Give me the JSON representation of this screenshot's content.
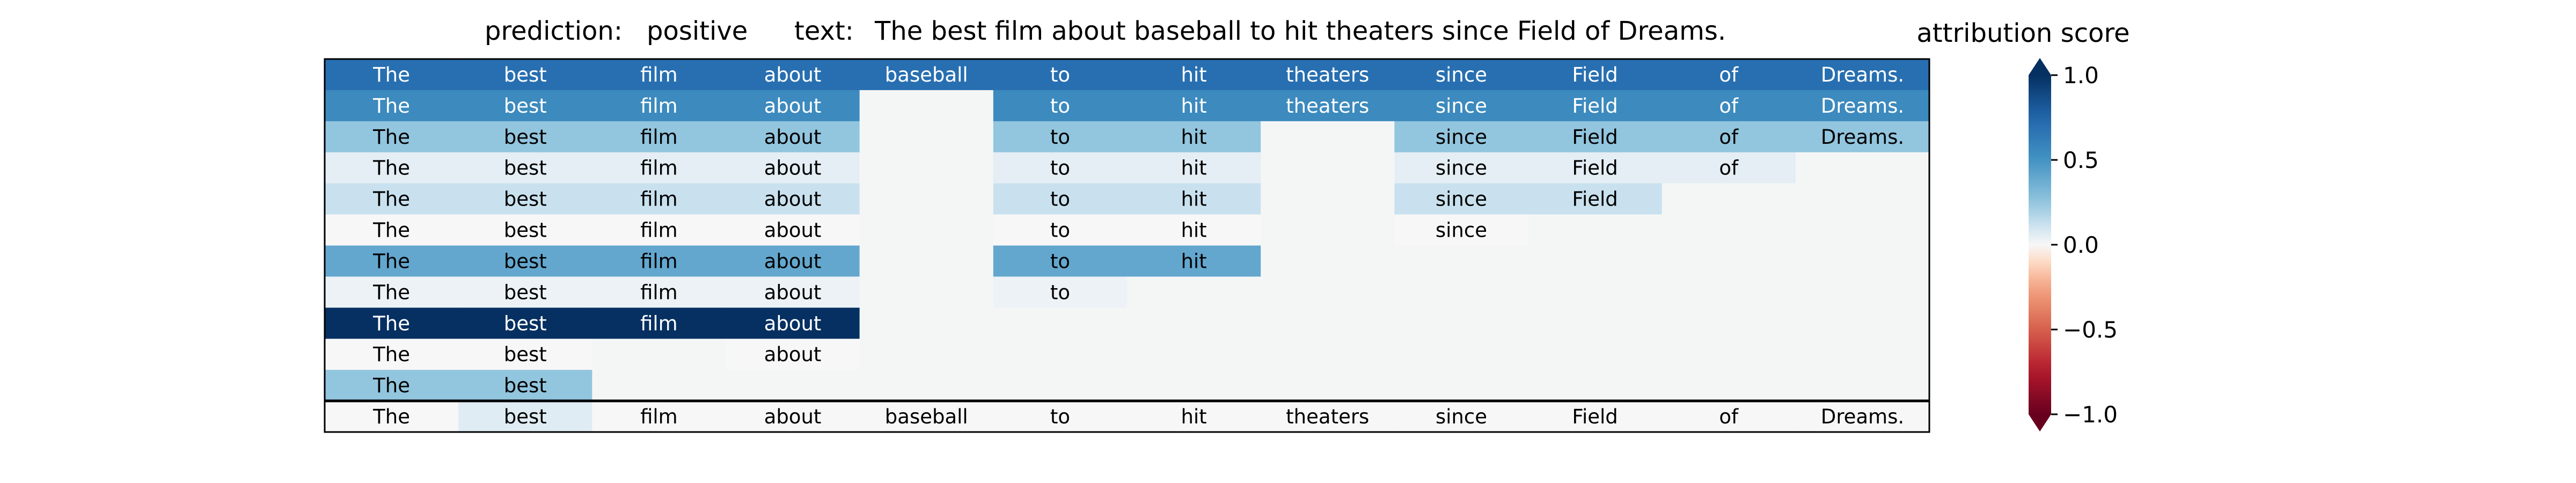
{
  "header": {
    "prediction_label": "prediction:",
    "prediction_value": "positive",
    "text_label": "text:",
    "text_value": "The best film about baseball to hit theaters since Field of Dreams."
  },
  "chart_data": {
    "type": "heatmap",
    "tokens": [
      "The",
      "best",
      "film",
      "about",
      "baseball",
      "to",
      "hit",
      "theaters",
      "since",
      "Field",
      "of",
      "Dreams."
    ],
    "rows": [
      [
        0.7,
        0.7,
        0.7,
        0.7,
        0.7,
        0.7,
        0.7,
        0.7,
        0.7,
        0.7,
        0.7,
        0.7
      ],
      [
        0.55,
        0.55,
        0.55,
        0.55,
        null,
        0.55,
        0.55,
        0.55,
        0.55,
        0.55,
        0.55,
        0.55
      ],
      [
        0.25,
        0.25,
        0.25,
        0.25,
        null,
        0.25,
        0.25,
        null,
        0.25,
        0.25,
        0.25,
        0.25
      ],
      [
        0.05,
        0.05,
        0.05,
        0.05,
        null,
        0.05,
        0.05,
        null,
        0.05,
        0.05,
        0.05,
        null
      ],
      [
        0.12,
        0.12,
        0.12,
        0.12,
        null,
        0.12,
        0.12,
        null,
        0.12,
        0.12,
        null,
        null
      ],
      [
        0.0,
        0.0,
        0.0,
        0.0,
        null,
        0.0,
        0.0,
        null,
        0.0,
        null,
        null,
        null
      ],
      [
        0.4,
        0.4,
        0.4,
        0.4,
        null,
        0.4,
        0.4,
        null,
        null,
        null,
        null,
        null
      ],
      [
        0.03,
        0.03,
        0.03,
        0.03,
        null,
        0.03,
        null,
        null,
        null,
        null,
        null,
        null
      ],
      [
        1.0,
        1.0,
        1.0,
        1.0,
        null,
        null,
        null,
        null,
        null,
        null,
        null,
        null
      ],
      [
        0.0,
        0.0,
        null,
        0.0,
        null,
        null,
        null,
        null,
        null,
        null,
        null,
        null
      ],
      [
        0.25,
        0.25,
        null,
        null,
        null,
        null,
        null,
        null,
        null,
        null,
        null,
        null
      ]
    ],
    "attribution_row": [
      0.0,
      0.06,
      0.0,
      0.0,
      0.0,
      0.0,
      0.0,
      0.0,
      0.0,
      0.0,
      0.0,
      0.0
    ],
    "colorbar": {
      "title": "attribution score",
      "range": [
        -1.0,
        1.0
      ],
      "ticks": [
        "1.0",
        "0.5",
        "0.0",
        "−0.5",
        "−1.0"
      ],
      "colormap": "RdBu"
    }
  }
}
